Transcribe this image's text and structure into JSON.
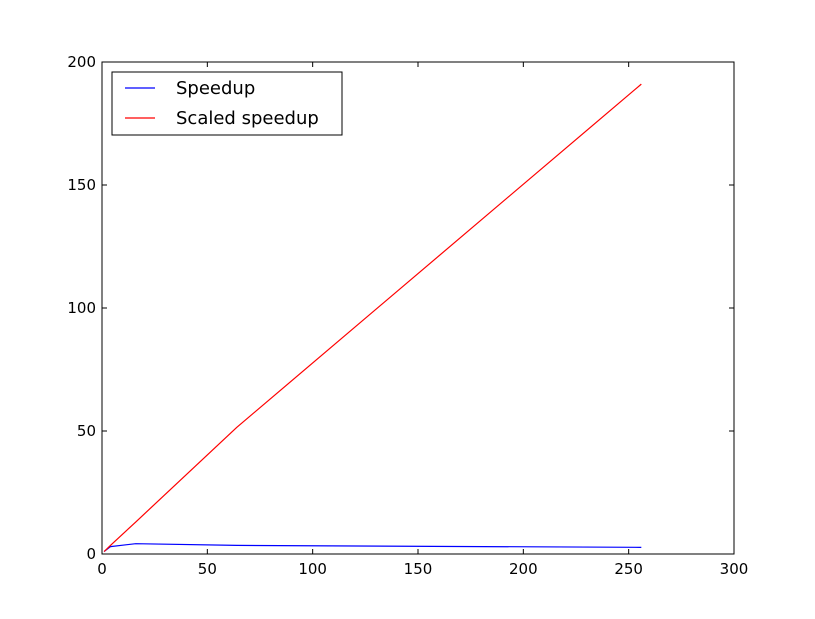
{
  "chart_data": {
    "type": "line",
    "title": "",
    "xlabel": "",
    "ylabel": "",
    "xlim": [
      0,
      300
    ],
    "ylim": [
      0,
      200
    ],
    "xticks": [
      0,
      50,
      100,
      150,
      200,
      250,
      300
    ],
    "yticks": [
      0,
      50,
      100,
      150,
      200
    ],
    "grid": false,
    "legend_position": "top-left",
    "series": [
      {
        "name": "Speedup",
        "color": "#0000ff",
        "points": [
          [
            1,
            1
          ],
          [
            4,
            3
          ],
          [
            16,
            4.2
          ],
          [
            64,
            3.5
          ],
          [
            256,
            2.7
          ]
        ]
      },
      {
        "name": "Scaled speedup",
        "color": "#ff0000",
        "points": [
          [
            1,
            1
          ],
          [
            4,
            3.5
          ],
          [
            16,
            13
          ],
          [
            64,
            51.5
          ],
          [
            256,
            191
          ]
        ]
      }
    ]
  }
}
